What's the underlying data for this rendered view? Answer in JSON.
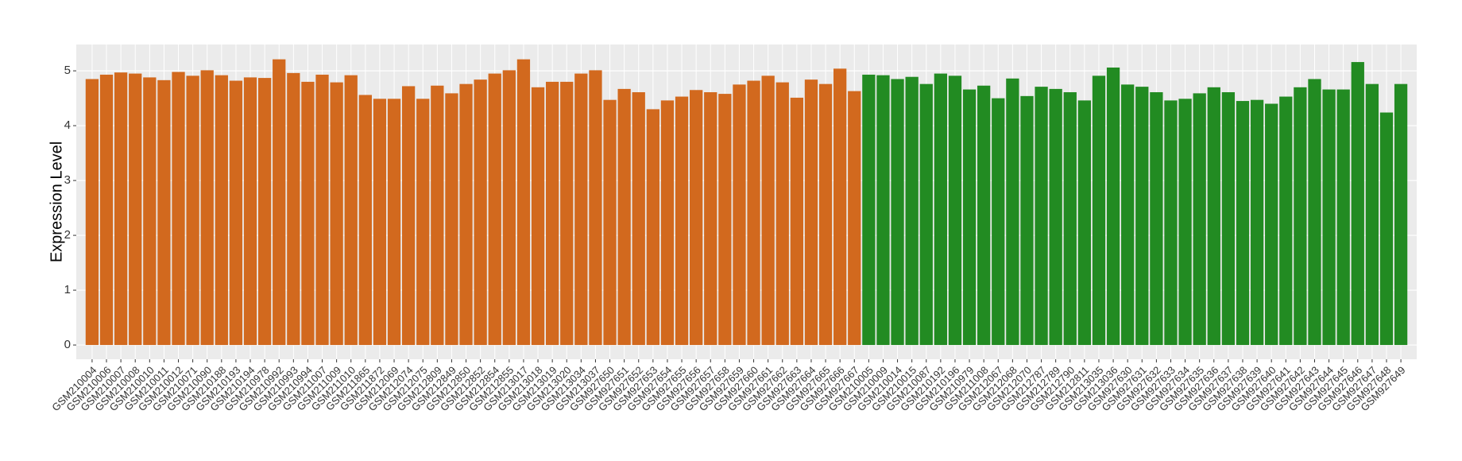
{
  "chart_data": {
    "type": "bar",
    "y_label": "Expression Level",
    "categories": [
      "GSM210004",
      "GSM210006",
      "GSM210007",
      "GSM210008",
      "GSM210010",
      "GSM210011",
      "GSM210012",
      "GSM210071",
      "GSM210090",
      "GSM210188",
      "GSM210193",
      "GSM210194",
      "GSM210978",
      "GSM210992",
      "GSM210993",
      "GSM210994",
      "GSM211007",
      "GSM211009",
      "GSM211010",
      "GSM211865",
      "GSM211872",
      "GSM212069",
      "GSM212074",
      "GSM212075",
      "GSM212809",
      "GSM212849",
      "GSM212850",
      "GSM212852",
      "GSM212854",
      "GSM212855",
      "GSM213017",
      "GSM213018",
      "GSM213019",
      "GSM213020",
      "GSM213034",
      "GSM213037",
      "GSM927650",
      "GSM927651",
      "GSM927652",
      "GSM927653",
      "GSM927654",
      "GSM927655",
      "GSM927656",
      "GSM927657",
      "GSM927658",
      "GSM927659",
      "GSM927660",
      "GSM927661",
      "GSM927662",
      "GSM927663",
      "GSM927664",
      "GSM927665",
      "GSM927666",
      "GSM927667",
      "GSM210005",
      "GSM210009",
      "GSM210014",
      "GSM210015",
      "GSM210087",
      "GSM210192",
      "GSM210196",
      "GSM210979",
      "GSM211008",
      "GSM212067",
      "GSM212068",
      "GSM212070",
      "GSM212787",
      "GSM212789",
      "GSM212790",
      "GSM212811",
      "GSM213035",
      "GSM213036",
      "GSM927630",
      "GSM927631",
      "GSM927632",
      "GSM927633",
      "GSM927634",
      "GSM927635",
      "GSM927636",
      "GSM927637",
      "GSM927638",
      "GSM927639",
      "GSM927640",
      "GSM927641",
      "GSM927642",
      "GSM927643",
      "GSM927644",
      "GSM927645",
      "GSM927646",
      "GSM927647",
      "GSM927648",
      "GSM927649"
    ],
    "values": [
      4.85,
      4.93,
      4.97,
      4.95,
      4.88,
      4.83,
      4.98,
      4.91,
      5.01,
      4.92,
      4.82,
      4.88,
      4.87,
      5.21,
      4.96,
      4.8,
      4.93,
      4.79,
      4.92,
      4.56,
      4.49,
      4.49,
      4.72,
      4.49,
      4.73,
      4.59,
      4.76,
      4.84,
      4.95,
      5.01,
      5.21,
      4.7,
      4.8,
      4.8,
      4.95,
      5.01,
      4.47,
      4.67,
      4.61,
      4.3,
      4.46,
      4.53,
      4.65,
      4.61,
      4.58,
      4.75,
      4.82,
      4.91,
      4.79,
      4.51,
      4.84,
      4.76,
      5.04,
      4.63,
      4.93,
      4.92,
      4.85,
      4.89,
      4.76,
      4.95,
      4.91,
      4.66,
      4.73,
      4.5,
      4.86,
      4.54,
      4.71,
      4.67,
      4.61,
      4.46,
      4.91,
      5.06,
      4.75,
      4.71,
      4.61,
      4.46,
      4.49,
      4.59,
      4.7,
      4.61,
      4.45,
      4.47,
      4.4,
      4.53,
      4.7,
      4.85,
      4.66,
      4.66,
      5.16,
      4.76,
      4.24,
      4.76
    ],
    "colors": [
      "#d2691e",
      "#d2691e",
      "#d2691e",
      "#d2691e",
      "#d2691e",
      "#d2691e",
      "#d2691e",
      "#d2691e",
      "#d2691e",
      "#d2691e",
      "#d2691e",
      "#d2691e",
      "#d2691e",
      "#d2691e",
      "#d2691e",
      "#d2691e",
      "#d2691e",
      "#d2691e",
      "#d2691e",
      "#d2691e",
      "#d2691e",
      "#d2691e",
      "#d2691e",
      "#d2691e",
      "#d2691e",
      "#d2691e",
      "#d2691e",
      "#d2691e",
      "#d2691e",
      "#d2691e",
      "#d2691e",
      "#d2691e",
      "#d2691e",
      "#d2691e",
      "#d2691e",
      "#d2691e",
      "#d2691e",
      "#d2691e",
      "#d2691e",
      "#d2691e",
      "#d2691e",
      "#d2691e",
      "#d2691e",
      "#d2691e",
      "#d2691e",
      "#d2691e",
      "#d2691e",
      "#d2691e",
      "#d2691e",
      "#d2691e",
      "#d2691e",
      "#d2691e",
      "#d2691e",
      "#d2691e",
      "#228b22",
      "#228b22",
      "#228b22",
      "#228b22",
      "#228b22",
      "#228b22",
      "#228b22",
      "#228b22",
      "#228b22",
      "#228b22",
      "#228b22",
      "#228b22",
      "#228b22",
      "#228b22",
      "#228b22",
      "#228b22",
      "#228b22",
      "#228b22",
      "#228b22",
      "#228b22",
      "#228b22",
      "#228b22",
      "#228b22",
      "#228b22",
      "#228b22",
      "#228b22",
      "#228b22",
      "#228b22",
      "#228b22",
      "#228b22",
      "#228b22",
      "#228b22",
      "#228b22",
      "#228b22",
      "#228b22",
      "#228b22",
      "#228b22",
      "#228b22"
    ],
    "ylim": [
      -0.26,
      5.48
    ],
    "yticks": [
      0,
      1,
      2,
      3,
      4,
      5
    ],
    "grid": true
  }
}
